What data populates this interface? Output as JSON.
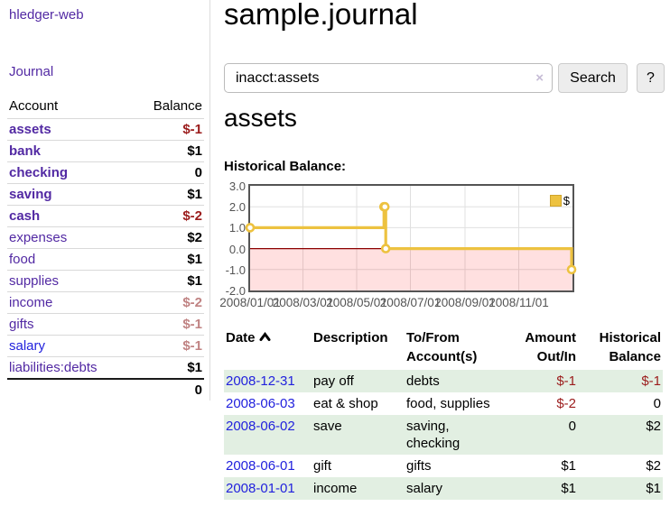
{
  "app": {
    "title": "hledger-web"
  },
  "sidebar": {
    "journal_label": "Journal",
    "accounts": {
      "headers": {
        "account": "Account",
        "balance": "Balance"
      },
      "rows": [
        {
          "name": "assets",
          "balance": "$-1"
        },
        {
          "name": "bank",
          "balance": "$1"
        },
        {
          "name": "checking",
          "balance": "0"
        },
        {
          "name": "saving",
          "balance": "$1"
        },
        {
          "name": "cash",
          "balance": "$-2"
        },
        {
          "name": "expenses",
          "balance": "$2"
        },
        {
          "name": "food",
          "balance": "$1"
        },
        {
          "name": "supplies",
          "balance": "$1"
        },
        {
          "name": "income",
          "balance": "$-2"
        },
        {
          "name": "gifts",
          "balance": "$-1"
        },
        {
          "name": "salary",
          "balance": "$-1"
        },
        {
          "name": "liabilities:debts",
          "balance": "$1"
        }
      ],
      "total": "0"
    }
  },
  "main": {
    "title": "sample.journal",
    "search": {
      "value": "inacct:assets",
      "clear_icon": "×",
      "button_label": "Search",
      "help_label": "?"
    },
    "account_heading": "assets",
    "chart_label": "Historical Balance:",
    "register": {
      "headers": {
        "date": "Date",
        "description": "Description",
        "tofrom": "To/From Account(s)",
        "amount": "Amount Out/In",
        "balance": "Historical Balance"
      },
      "rows": [
        {
          "date": "2008-12-31",
          "description": "pay off",
          "accounts": "debts",
          "amount": "$-1",
          "balance": "$-1"
        },
        {
          "date": "2008-06-03",
          "description": "eat & shop",
          "accounts": "food, supplies",
          "amount": "$-2",
          "balance": "0"
        },
        {
          "date": "2008-06-02",
          "description": "save",
          "accounts": "saving, checking",
          "amount": "0",
          "balance": "$2"
        },
        {
          "date": "2008-06-01",
          "description": "gift",
          "accounts": "gifts",
          "amount": "$1",
          "balance": "$2"
        },
        {
          "date": "2008-01-01",
          "description": "income",
          "accounts": "salary",
          "amount": "$1",
          "balance": "$1"
        }
      ]
    }
  },
  "colors": {
    "link_purple": "#5229a3",
    "link_blue": "#2222dd",
    "negative": "#9b1c1c",
    "negative_light": "#c08383",
    "row_green": "#e2efe2",
    "chart_line": "#EDC240",
    "zero_line": "#8b0000",
    "negative_fill": "rgba(255,0,0,0.12)"
  },
  "chart_data": {
    "type": "line",
    "title": "Historical Balance",
    "step": true,
    "grid": true,
    "legend_position": "top-right",
    "series": [
      {
        "name": "$",
        "color": "#EDC240",
        "points": [
          [
            "2008-01-01",
            1
          ],
          [
            "2008-06-01",
            2
          ],
          [
            "2008-06-02",
            2
          ],
          [
            "2008-06-03",
            0
          ],
          [
            "2008-12-31",
            -1
          ]
        ]
      }
    ],
    "x_ticks": [
      "2008/01/01",
      "2008/03/01",
      "2008/05/01",
      "2008/07/01",
      "2008/09/01",
      "2008/11/01"
    ],
    "y_ticks": [
      3.0,
      2.0,
      1.0,
      0.0,
      -1.0,
      -2.0
    ],
    "ylim": [
      -2,
      3
    ],
    "xlim": [
      "2008-01-01",
      "2008-12-31"
    ],
    "negative_region_shaded": true
  }
}
